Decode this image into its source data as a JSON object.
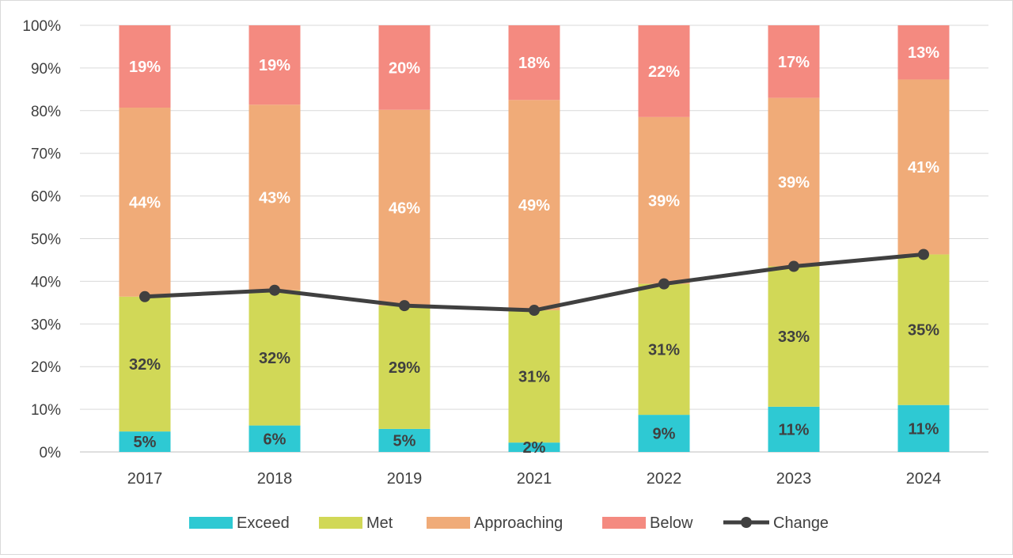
{
  "chart_data": {
    "type": "bar",
    "stacked": true,
    "categories": [
      "2017",
      "2018",
      "2019",
      "2021",
      "2022",
      "2023",
      "2024"
    ],
    "series": [
      {
        "name": "Exceed",
        "color": "#2ec9d3",
        "values": [
          4.8,
          6.2,
          5.4,
          2.2,
          8.7,
          10.6,
          11.0
        ],
        "labels": [
          "5%",
          "6%",
          "5%",
          "2%",
          "9%",
          "11%",
          "11%"
        ],
        "label_color": "#404040"
      },
      {
        "name": "Met",
        "color": "#d1d857",
        "values": [
          31.6,
          31.7,
          28.9,
          31.0,
          30.7,
          32.9,
          35.3
        ],
        "labels": [
          "32%",
          "32%",
          "29%",
          "31%",
          "31%",
          "33%",
          "35%"
        ],
        "label_color": "#404040"
      },
      {
        "name": "Approaching",
        "color": "#f0ab78",
        "values": [
          44.3,
          43.5,
          45.9,
          49.3,
          39.1,
          39.5,
          41.0
        ],
        "labels": [
          "44%",
          "43%",
          "46%",
          "49%",
          "39%",
          "39%",
          "41%"
        ],
        "label_color": "#ffffff"
      },
      {
        "name": "Below",
        "color": "#f48a80",
        "values": [
          19.3,
          18.6,
          19.8,
          17.5,
          21.5,
          17.0,
          12.7
        ],
        "labels": [
          "19%",
          "19%",
          "20%",
          "18%",
          "22%",
          "17%",
          "13%"
        ],
        "label_color": "#ffffff"
      }
    ],
    "line": {
      "name": "Change",
      "color": "#404040",
      "values": [
        36.4,
        37.9,
        34.3,
        33.2,
        39.4,
        43.5,
        46.3
      ]
    },
    "ylim": [
      0,
      100
    ],
    "yticks": [
      "0%",
      "10%",
      "20%",
      "30%",
      "40%",
      "50%",
      "60%",
      "70%",
      "80%",
      "90%",
      "100%"
    ],
    "grid": true,
    "legend_position": "bottom",
    "title": "",
    "xlabel": "",
    "ylabel": ""
  }
}
